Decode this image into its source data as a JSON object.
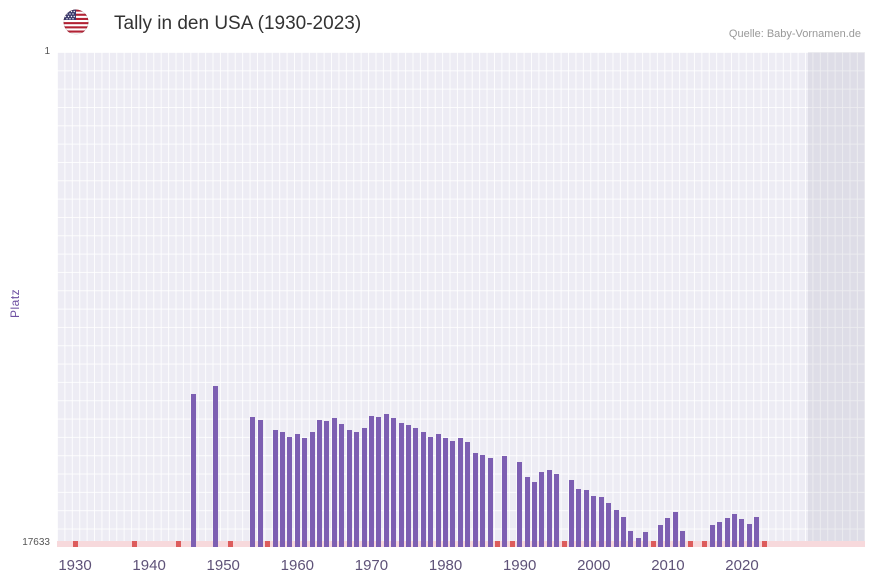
{
  "header": {
    "title": "Tally in den USA (1930-2023)",
    "source": "Quelle: Baby-Vornamen.de",
    "flag": "us-flag-icon"
  },
  "chart_data": {
    "type": "bar",
    "title": "Tally in den USA (1930-2023)",
    "xlabel": "",
    "ylabel": "Platz",
    "y_axis": {
      "min_label": "1",
      "max_label": "17633",
      "min": 1,
      "max": 17633,
      "inverted": true
    },
    "x_ticks": [
      "1930",
      "1940",
      "1950",
      "1960",
      "1970",
      "1980",
      "1990",
      "2000",
      "2010",
      "2020"
    ],
    "x_range": [
      1930,
      2023
    ],
    "legend": "none",
    "grid": true,
    "colors": {
      "bar": "#7d5fb2",
      "missing": "#dd5c5c",
      "baseline_strip": "#f7d9dc",
      "plot_bg": "#edecf4",
      "right_shade": "rgba(125,120,145,0.13)",
      "tick_label": "#5e5278"
    },
    "points": [
      {
        "year": 1946,
        "rank": 12200
      },
      {
        "year": 1949,
        "rank": 11900
      },
      {
        "year": 1954,
        "rank": 13000
      },
      {
        "year": 1955,
        "rank": 13100
      },
      {
        "year": 1957,
        "rank": 13450
      },
      {
        "year": 1958,
        "rank": 13550
      },
      {
        "year": 1959,
        "rank": 13700
      },
      {
        "year": 1960,
        "rank": 13600
      },
      {
        "year": 1961,
        "rank": 13750
      },
      {
        "year": 1962,
        "rank": 13550
      },
      {
        "year": 1963,
        "rank": 13100
      },
      {
        "year": 1964,
        "rank": 13150
      },
      {
        "year": 1965,
        "rank": 13050
      },
      {
        "year": 1966,
        "rank": 13250
      },
      {
        "year": 1967,
        "rank": 13450
      },
      {
        "year": 1968,
        "rank": 13550
      },
      {
        "year": 1969,
        "rank": 13400
      },
      {
        "year": 1970,
        "rank": 12950
      },
      {
        "year": 1971,
        "rank": 13000
      },
      {
        "year": 1972,
        "rank": 12900
      },
      {
        "year": 1973,
        "rank": 13050
      },
      {
        "year": 1974,
        "rank": 13200
      },
      {
        "year": 1975,
        "rank": 13300
      },
      {
        "year": 1976,
        "rank": 13400
      },
      {
        "year": 1977,
        "rank": 13550
      },
      {
        "year": 1978,
        "rank": 13700
      },
      {
        "year": 1979,
        "rank": 13600
      },
      {
        "year": 1980,
        "rank": 13750
      },
      {
        "year": 1981,
        "rank": 13850
      },
      {
        "year": 1982,
        "rank": 13750
      },
      {
        "year": 1983,
        "rank": 13900
      },
      {
        "year": 1984,
        "rank": 14300
      },
      {
        "year": 1985,
        "rank": 14350
      },
      {
        "year": 1986,
        "rank": 14450
      },
      {
        "year": 1988,
        "rank": 14400
      },
      {
        "year": 1990,
        "rank": 14600
      },
      {
        "year": 1991,
        "rank": 15150
      },
      {
        "year": 1992,
        "rank": 15300
      },
      {
        "year": 1993,
        "rank": 14950
      },
      {
        "year": 1994,
        "rank": 14900
      },
      {
        "year": 1995,
        "rank": 15050
      },
      {
        "year": 1997,
        "rank": 15250
      },
      {
        "year": 1998,
        "rank": 15550
      },
      {
        "year": 1999,
        "rank": 15600
      },
      {
        "year": 2000,
        "rank": 15800
      },
      {
        "year": 2001,
        "rank": 15850
      },
      {
        "year": 2002,
        "rank": 16050
      },
      {
        "year": 2003,
        "rank": 16300
      },
      {
        "year": 2004,
        "rank": 16550
      },
      {
        "year": 2005,
        "rank": 17050
      },
      {
        "year": 2006,
        "rank": 17300
      },
      {
        "year": 2007,
        "rank": 17100
      },
      {
        "year": 2009,
        "rank": 16850
      },
      {
        "year": 2010,
        "rank": 16600
      },
      {
        "year": 2011,
        "rank": 16400
      },
      {
        "year": 2012,
        "rank": 17050
      },
      {
        "year": 2016,
        "rank": 16850
      },
      {
        "year": 2017,
        "rank": 16750
      },
      {
        "year": 2018,
        "rank": 16600
      },
      {
        "year": 2019,
        "rank": 16450
      },
      {
        "year": 2020,
        "rank": 16650
      },
      {
        "year": 2021,
        "rank": 16800
      },
      {
        "year": 2022,
        "rank": 16550
      }
    ],
    "missing_years": [
      1930,
      1938,
      1944,
      1951,
      1956,
      1987,
      1989,
      1996,
      2008,
      2013,
      2015,
      2023
    ]
  }
}
